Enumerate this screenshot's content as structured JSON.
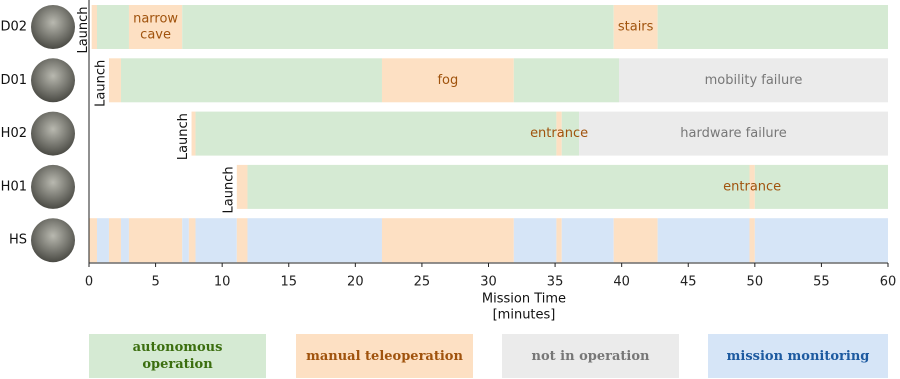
{
  "chart_data": {
    "type": "timeline",
    "xlabel": [
      "Mission Time",
      "[minutes]"
    ],
    "xlim": [
      0,
      60
    ],
    "xticks": [
      0,
      5,
      10,
      15,
      20,
      25,
      30,
      35,
      40,
      45,
      50,
      55,
      60
    ],
    "legend": [
      {
        "name": "autonomous operation",
        "color": "#d5ead3",
        "text_color": "#3b6e0f"
      },
      {
        "name": "manual teleoperation",
        "color": "#fde0c3",
        "text_color": "#a0530d"
      },
      {
        "name": "not in operation",
        "color": "#ebebeb",
        "text_color": "#777777"
      },
      {
        "name": "mission monitoring",
        "color": "#d6e5f7",
        "text_color": "#1d5aa0"
      }
    ],
    "rows": [
      {
        "label": "D02",
        "launch": {
          "x": 0.2,
          "text": "Launch"
        },
        "segments": [
          {
            "start": 0.2,
            "end": 0.6,
            "state": "manual teleoperation"
          },
          {
            "start": 0.6,
            "end": 3.0,
            "state": "autonomous operation"
          },
          {
            "start": 3.0,
            "end": 7.0,
            "state": "manual teleoperation",
            "label": [
              "narrow",
              "cave"
            ]
          },
          {
            "start": 7.0,
            "end": 39.4,
            "state": "autonomous operation"
          },
          {
            "start": 39.4,
            "end": 42.7,
            "state": "manual teleoperation",
            "label": [
              "stairs"
            ]
          },
          {
            "start": 42.7,
            "end": 60,
            "state": "autonomous operation"
          }
        ]
      },
      {
        "label": "D01",
        "launch": {
          "x": 1.5,
          "text": "Launch"
        },
        "segments": [
          {
            "start": 1.5,
            "end": 2.4,
            "state": "manual teleoperation"
          },
          {
            "start": 2.4,
            "end": 22.0,
            "state": "autonomous operation"
          },
          {
            "start": 22.0,
            "end": 31.9,
            "state": "manual teleoperation",
            "label": [
              "fog"
            ]
          },
          {
            "start": 31.9,
            "end": 39.8,
            "state": "autonomous operation"
          },
          {
            "start": 39.8,
            "end": 60,
            "state": "not in operation",
            "label": [
              "mobility failure"
            ]
          }
        ]
      },
      {
        "label": "H02",
        "launch": {
          "x": 7.7,
          "text": "Launch"
        },
        "segments": [
          {
            "start": 7.7,
            "end": 8.0,
            "state": "manual teleoperation"
          },
          {
            "start": 8.0,
            "end": 35.1,
            "state": "autonomous operation"
          },
          {
            "start": 35.1,
            "end": 35.5,
            "state": "manual teleoperation",
            "label": [
              "entrance"
            ]
          },
          {
            "start": 35.5,
            "end": 36.8,
            "state": "autonomous operation"
          },
          {
            "start": 36.8,
            "end": 60,
            "state": "not in operation",
            "label": [
              "hardware failure"
            ]
          }
        ]
      },
      {
        "label": "H01",
        "launch": {
          "x": 11.1,
          "text": "Launch"
        },
        "segments": [
          {
            "start": 11.1,
            "end": 11.9,
            "state": "manual teleoperation"
          },
          {
            "start": 11.9,
            "end": 49.6,
            "state": "autonomous operation"
          },
          {
            "start": 49.6,
            "end": 50.0,
            "state": "manual teleoperation",
            "label": [
              "entrance"
            ]
          },
          {
            "start": 50.0,
            "end": 60,
            "state": "autonomous operation"
          }
        ]
      },
      {
        "label": "HS",
        "segments": [
          {
            "start": 0,
            "end": 0.6,
            "state": "manual teleoperation"
          },
          {
            "start": 0.6,
            "end": 1.5,
            "state": "mission monitoring"
          },
          {
            "start": 1.5,
            "end": 2.4,
            "state": "manual teleoperation"
          },
          {
            "start": 2.4,
            "end": 3.0,
            "state": "mission monitoring"
          },
          {
            "start": 3.0,
            "end": 7.0,
            "state": "manual teleoperation"
          },
          {
            "start": 7.0,
            "end": 7.5,
            "state": "mission monitoring"
          },
          {
            "start": 7.5,
            "end": 8.0,
            "state": "manual teleoperation"
          },
          {
            "start": 8.0,
            "end": 11.1,
            "state": "mission monitoring"
          },
          {
            "start": 11.1,
            "end": 11.9,
            "state": "manual teleoperation"
          },
          {
            "start": 11.9,
            "end": 22.0,
            "state": "mission monitoring"
          },
          {
            "start": 22.0,
            "end": 31.9,
            "state": "manual teleoperation"
          },
          {
            "start": 31.9,
            "end": 35.1,
            "state": "mission monitoring"
          },
          {
            "start": 35.1,
            "end": 35.5,
            "state": "manual teleoperation"
          },
          {
            "start": 35.5,
            "end": 39.4,
            "state": "mission monitoring"
          },
          {
            "start": 39.4,
            "end": 42.7,
            "state": "manual teleoperation"
          },
          {
            "start": 42.7,
            "end": 49.6,
            "state": "mission monitoring"
          },
          {
            "start": 49.6,
            "end": 50.0,
            "state": "manual teleoperation"
          },
          {
            "start": 50.0,
            "end": 60,
            "state": "mission monitoring"
          }
        ]
      }
    ]
  }
}
